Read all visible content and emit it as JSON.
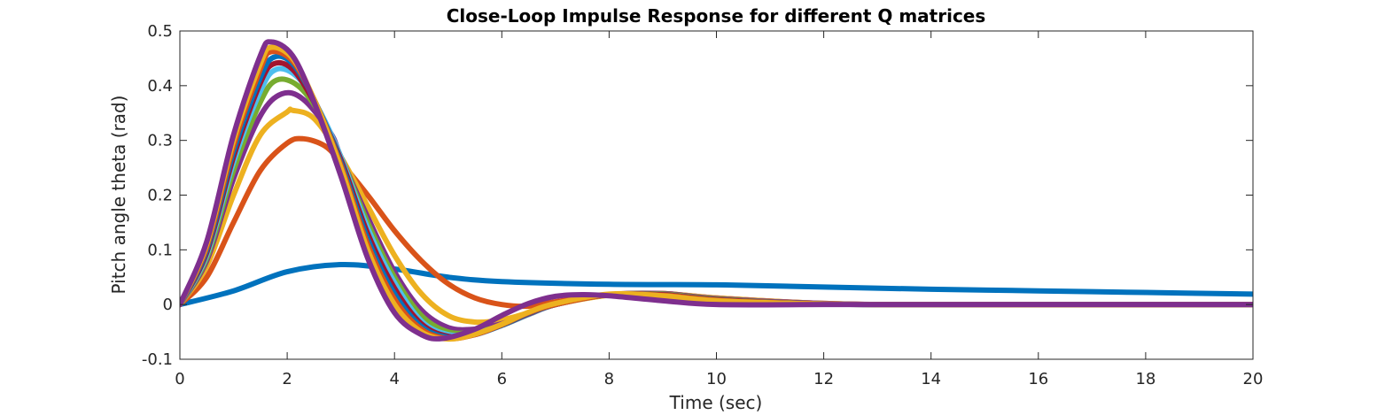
{
  "chart_data": {
    "type": "line",
    "title": "Close-Loop Impulse Response for different Q matrices",
    "xlabel": "Time (sec)",
    "ylabel": "Pitch angle theta (rad)",
    "xlim": [
      0,
      20
    ],
    "ylim": [
      -0.1,
      0.5
    ],
    "xticks": [
      0,
      2,
      4,
      6,
      8,
      10,
      12,
      14,
      16,
      18,
      20
    ],
    "yticks": [
      -0.1,
      0,
      0.1,
      0.2,
      0.3,
      0.4,
      0.5
    ],
    "xtick_labels": [
      "0",
      "2",
      "4",
      "6",
      "8",
      "10",
      "12",
      "14",
      "16",
      "18",
      "20"
    ],
    "ytick_labels": [
      "-0.1",
      "0",
      "0.1",
      "0.2",
      "0.3",
      "0.4",
      "0.5"
    ],
    "grid": false,
    "legend": false,
    "series": [
      {
        "color": "#0072BD",
        "x": [
          0,
          1,
          2,
          3,
          4,
          5,
          6,
          8,
          10,
          12,
          14,
          16,
          18,
          20
        ],
        "y": [
          0,
          0.025,
          0.06,
          0.073,
          0.065,
          0.05,
          0.042,
          0.037,
          0.036,
          0.032,
          0.028,
          0.025,
          0.022,
          0.019
        ]
      },
      {
        "color": "#D95319",
        "x": [
          0,
          0.5,
          1,
          1.5,
          2,
          2.3,
          2.7,
          3,
          3.5,
          4,
          4.5,
          5,
          5.5,
          6,
          6.5,
          7,
          8,
          9,
          10,
          12,
          14,
          20
        ],
        "y": [
          0,
          0.05,
          0.15,
          0.245,
          0.295,
          0.303,
          0.29,
          0.26,
          0.2,
          0.135,
          0.08,
          0.038,
          0.012,
          0,
          -0.003,
          0.005,
          0.018,
          0.02,
          0.012,
          0.002,
          0,
          0
        ]
      },
      {
        "color": "#EDB120",
        "x": [
          0,
          0.5,
          1,
          1.5,
          2,
          2.1,
          2.5,
          3,
          3.5,
          4,
          4.5,
          5,
          5.5,
          6,
          6.5,
          7,
          8,
          9,
          10,
          12,
          14,
          20
        ],
        "y": [
          0,
          0.07,
          0.2,
          0.31,
          0.352,
          0.355,
          0.34,
          0.27,
          0.18,
          0.09,
          0.02,
          -0.02,
          -0.032,
          -0.028,
          -0.015,
          0,
          0.017,
          0.02,
          0.012,
          0.002,
          0,
          0
        ]
      },
      {
        "color": "#7E2F8E",
        "x": [
          0,
          0.5,
          1,
          1.5,
          1.9,
          2.3,
          2.8,
          3,
          3.5,
          4,
          4.5,
          5,
          5.5,
          6,
          6.5,
          7,
          8,
          9,
          10,
          12,
          14,
          20
        ],
        "y": [
          0,
          0.08,
          0.23,
          0.345,
          0.385,
          0.375,
          0.315,
          0.27,
          0.16,
          0.06,
          -0.01,
          -0.042,
          -0.045,
          -0.035,
          -0.018,
          0,
          0.018,
          0.02,
          0.011,
          0.002,
          0,
          0
        ]
      },
      {
        "color": "#77AC30",
        "x": [
          0,
          0.5,
          1,
          1.5,
          1.8,
          2.2,
          2.6,
          3,
          3.5,
          4,
          4.5,
          5,
          5.5,
          6,
          6.5,
          7,
          8,
          9,
          10,
          12,
          14,
          20
        ],
        "y": [
          0,
          0.085,
          0.245,
          0.37,
          0.41,
          0.4,
          0.35,
          0.27,
          0.15,
          0.05,
          -0.02,
          -0.05,
          -0.05,
          -0.038,
          -0.018,
          0,
          0.018,
          0.019,
          0.01,
          0.001,
          0,
          0
        ]
      },
      {
        "color": "#4DBEEE",
        "x": [
          0,
          0.5,
          1,
          1.5,
          1.8,
          2.2,
          2.6,
          3,
          3.5,
          4,
          4.5,
          5,
          5.5,
          6,
          6.5,
          7,
          8,
          9,
          10,
          12,
          14,
          20
        ],
        "y": [
          0,
          0.09,
          0.26,
          0.39,
          0.43,
          0.415,
          0.355,
          0.27,
          0.14,
          0.04,
          -0.03,
          -0.055,
          -0.052,
          -0.038,
          -0.018,
          0,
          0.018,
          0.018,
          0.009,
          0.001,
          0,
          0
        ]
      },
      {
        "color": "#A2142F",
        "x": [
          0,
          0.5,
          1,
          1.5,
          1.75,
          2.1,
          2.5,
          3,
          3.5,
          4,
          4.5,
          5,
          5.5,
          6,
          6.5,
          7,
          8,
          9,
          10,
          12,
          14,
          20
        ],
        "y": [
          0,
          0.095,
          0.27,
          0.405,
          0.44,
          0.43,
          0.37,
          0.265,
          0.13,
          0.03,
          -0.035,
          -0.058,
          -0.054,
          -0.038,
          -0.017,
          0,
          0.018,
          0.018,
          0.009,
          0.001,
          0,
          0
        ]
      },
      {
        "color": "#0072BD",
        "x": [
          0,
          0.5,
          1,
          1.5,
          1.75,
          2.1,
          2.5,
          3,
          3.5,
          4,
          4.5,
          5,
          5.5,
          6,
          6.5,
          7,
          8,
          9,
          10,
          12,
          14,
          20
        ],
        "y": [
          0,
          0.1,
          0.28,
          0.415,
          0.452,
          0.44,
          0.375,
          0.26,
          0.12,
          0.02,
          -0.04,
          -0.06,
          -0.055,
          -0.038,
          -0.016,
          0,
          0.018,
          0.017,
          0.008,
          0.001,
          0,
          0
        ]
      },
      {
        "color": "#D95319",
        "x": [
          0,
          0.5,
          1,
          1.5,
          1.7,
          2.1,
          2.5,
          3,
          3.5,
          4,
          4.5,
          5,
          5.5,
          6,
          6.5,
          7,
          8,
          9,
          10,
          12,
          14,
          20
        ],
        "y": [
          0,
          0.105,
          0.29,
          0.43,
          0.462,
          0.445,
          0.375,
          0.255,
          0.11,
          0.01,
          -0.045,
          -0.062,
          -0.055,
          -0.037,
          -0.015,
          0,
          0.018,
          0.017,
          0.008,
          0.001,
          0,
          0
        ]
      },
      {
        "color": "#EDB120",
        "x": [
          0,
          0.5,
          1,
          1.5,
          1.7,
          2.1,
          2.5,
          3,
          3.5,
          4,
          4.5,
          5,
          5.5,
          6,
          6.5,
          7,
          8,
          9,
          10,
          12,
          14,
          20
        ],
        "y": [
          0,
          0.11,
          0.3,
          0.44,
          0.47,
          0.45,
          0.375,
          0.25,
          0.1,
          0,
          -0.05,
          -0.063,
          -0.054,
          -0.036,
          -0.014,
          0.002,
          0.019,
          0.016,
          0.007,
          0.001,
          0,
          0
        ]
      },
      {
        "color": "#7E2F8E",
        "x": [
          0,
          0.5,
          1,
          1.5,
          1.7,
          2.1,
          2.5,
          3,
          3.5,
          4,
          4.5,
          4.9,
          5.5,
          6,
          6.5,
          7,
          7.5,
          8,
          9,
          10,
          12,
          14,
          20
        ],
        "y": [
          0,
          0.115,
          0.31,
          0.455,
          0.48,
          0.455,
          0.37,
          0.235,
          0.085,
          -0.015,
          -0.055,
          -0.062,
          -0.045,
          -0.02,
          0.002,
          0.015,
          0.018,
          0.016,
          0.007,
          0,
          0,
          0,
          0
        ]
      }
    ]
  }
}
